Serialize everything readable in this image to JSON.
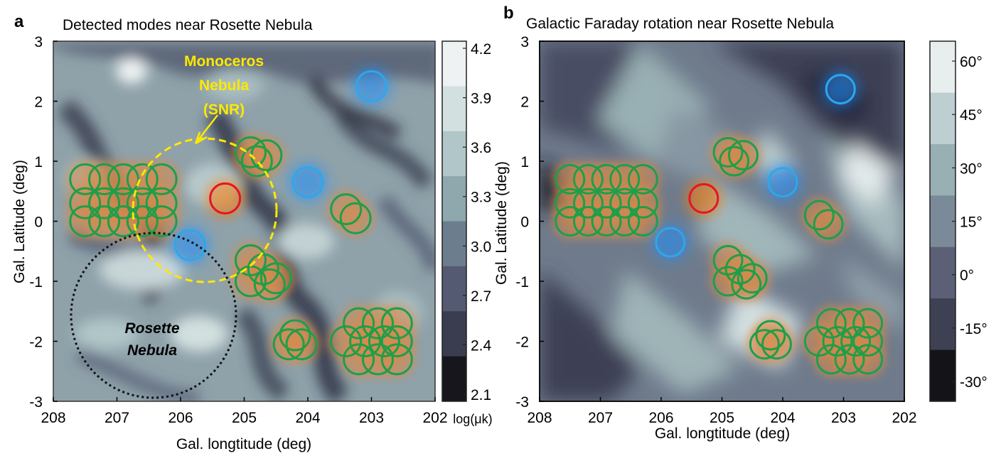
{
  "chart_data": [
    {
      "panel_label": "a",
      "type": "heatmap",
      "title": "Detected modes near Rosette Nebula",
      "xlabel": "Gal. longtitude (deg)",
      "ylabel": "Gal. Latitude  (deg)",
      "xlim": [
        208,
        202
      ],
      "ylim": [
        -3,
        3
      ],
      "x_ticks": [
        "208",
        "207",
        "206",
        "205",
        "204",
        "203",
        "202"
      ],
      "y_ticks": [
        "3",
        "2",
        "1",
        "0",
        "-1",
        "-2",
        "-3"
      ],
      "colorbar": {
        "ticks": [
          "4.2",
          "3.9",
          "3.6",
          "3.3",
          "3.0",
          "2.7",
          "2.4",
          "2.1"
        ],
        "unit": "log(μk)",
        "colors": [
          "#eef2f2",
          "#d3e0e0",
          "#b0c6c8",
          "#8ea8ae",
          "#6c7e8e",
          "#535a72",
          "#3a3d50",
          "#16161c"
        ]
      },
      "circles_blue": [
        [
          203,
          2.25
        ],
        [
          204,
          0.65
        ],
        [
          205.85,
          -0.4
        ]
      ],
      "circles_red": [
        [
          205.3,
          0.38
        ]
      ],
      "circles_green": [
        [
          207.5,
          0.7
        ],
        [
          207.2,
          0.7
        ],
        [
          206.9,
          0.7
        ],
        [
          206.6,
          0.7
        ],
        [
          206.3,
          0.7
        ],
        [
          207.5,
          0.3
        ],
        [
          207.2,
          0.3
        ],
        [
          206.9,
          0.3
        ],
        [
          206.6,
          0.3
        ],
        [
          206.3,
          0.3
        ],
        [
          207.5,
          0.0
        ],
        [
          207.2,
          0.0
        ],
        [
          206.9,
          0.0
        ],
        [
          206.6,
          0.0
        ],
        [
          206.3,
          0.0
        ],
        [
          204.8,
          1.0
        ],
        [
          204.65,
          1.1
        ],
        [
          204.9,
          1.15
        ],
        [
          203.4,
          0.2
        ],
        [
          203.25,
          0.05
        ],
        [
          204.9,
          -0.65
        ],
        [
          204.7,
          -0.8
        ],
        [
          204.5,
          -0.95
        ],
        [
          204.9,
          -1.0
        ],
        [
          204.6,
          -1.05
        ],
        [
          204.3,
          -2.05
        ],
        [
          204.1,
          -2.05
        ],
        [
          204.2,
          -1.9
        ],
        [
          203.4,
          -2.0
        ],
        [
          203.1,
          -2.0
        ],
        [
          202.8,
          -2.0
        ],
        [
          202.6,
          -2.0
        ],
        [
          203.2,
          -1.7
        ],
        [
          202.9,
          -1.7
        ],
        [
          202.6,
          -1.7
        ],
        [
          203.2,
          -2.3
        ],
        [
          202.9,
          -2.3
        ],
        [
          202.6,
          -2.3
        ]
      ],
      "annotations": [
        {
          "text": "Monoceros",
          "x": 205.15,
          "y": 2.6
        },
        {
          "text": "Nebula",
          "x": 205.15,
          "y": 2.2
        },
        {
          "text": "(SNR)",
          "x": 205.15,
          "y": 1.8
        },
        {
          "text": "Rosette",
          "x": 206.05,
          "y": -1.75
        },
        {
          "text": "Nebula",
          "x": 206.05,
          "y": -2.2
        }
      ]
    },
    {
      "panel_label": "b",
      "type": "heatmap",
      "title": "Galactic Faraday rotation near Rosette Nebula",
      "xlabel": "Gal. longtitude (deg)",
      "ylabel": "Gal. Latitude  (deg)",
      "xlim": [
        208,
        202
      ],
      "ylim": [
        -3,
        3
      ],
      "x_ticks": [
        "208",
        "207",
        "206",
        "205",
        "204",
        "203",
        "202"
      ],
      "y_ticks": [
        "3",
        "2",
        "1",
        "0",
        "-1",
        "-2",
        "-3"
      ],
      "colorbar": {
        "ticks": [
          "60°",
          "45°",
          "30°",
          "15°",
          "0°",
          "-15°",
          "-30°"
        ],
        "colors": [
          "#e8eeee",
          "#bdcfd0",
          "#98afb3",
          "#7b8a99",
          "#5b6076",
          "#3e4154",
          "#141418"
        ]
      },
      "circles_blue": [
        [
          203.05,
          2.2
        ],
        [
          204,
          0.65
        ],
        [
          205.85,
          -0.35
        ]
      ],
      "circles_red": [
        [
          205.3,
          0.38
        ]
      ],
      "circles_green": [
        [
          207.5,
          0.7
        ],
        [
          207.2,
          0.7
        ],
        [
          206.9,
          0.7
        ],
        [
          206.6,
          0.7
        ],
        [
          206.3,
          0.7
        ],
        [
          207.5,
          0.3
        ],
        [
          207.2,
          0.3
        ],
        [
          206.9,
          0.3
        ],
        [
          206.6,
          0.3
        ],
        [
          206.3,
          0.3
        ],
        [
          207.5,
          0.0
        ],
        [
          207.2,
          0.0
        ],
        [
          206.9,
          0.0
        ],
        [
          206.6,
          0.0
        ],
        [
          206.3,
          0.0
        ],
        [
          204.8,
          1.0
        ],
        [
          204.65,
          1.1
        ],
        [
          204.9,
          1.15
        ],
        [
          203.4,
          0.1
        ],
        [
          203.25,
          -0.05
        ],
        [
          204.9,
          -0.65
        ],
        [
          204.7,
          -0.8
        ],
        [
          204.5,
          -0.95
        ],
        [
          204.9,
          -1.0
        ],
        [
          204.6,
          -1.05
        ],
        [
          204.3,
          -2.05
        ],
        [
          204.1,
          -2.05
        ],
        [
          204.2,
          -1.9
        ],
        [
          203.4,
          -2.0
        ],
        [
          203.1,
          -2.0
        ],
        [
          202.8,
          -2.0
        ],
        [
          202.6,
          -2.0
        ],
        [
          203.2,
          -1.7
        ],
        [
          202.9,
          -1.7
        ],
        [
          202.6,
          -1.7
        ],
        [
          203.2,
          -2.3
        ],
        [
          202.9,
          -2.3
        ],
        [
          202.6,
          -2.3
        ]
      ]
    }
  ]
}
